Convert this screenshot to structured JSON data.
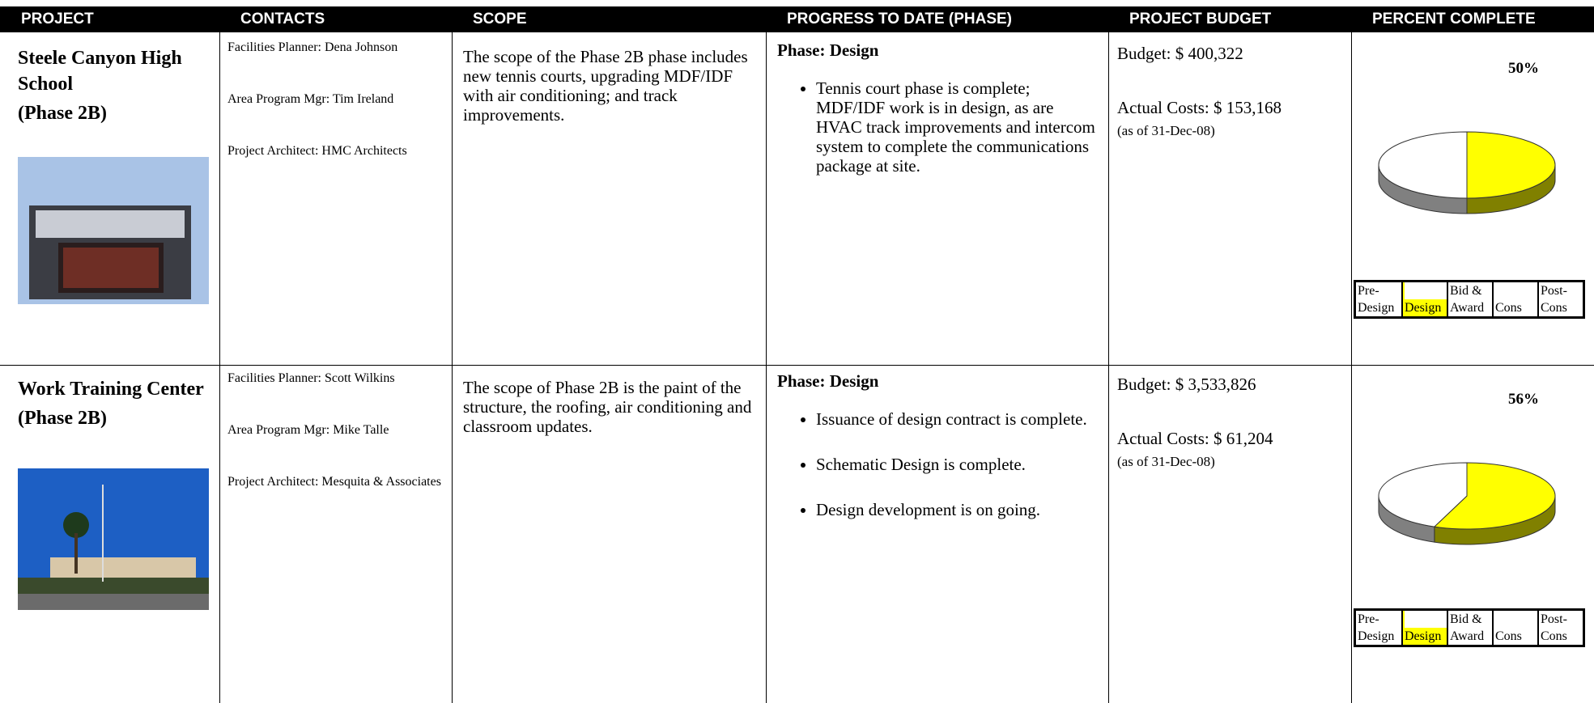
{
  "header": [
    "PROJECT",
    "CONTACTS",
    "SCOPE",
    "PROGRESS TO DATE (PHASE)",
    "PROJECT BUDGET",
    "PERCENT COMPLETE"
  ],
  "rows": [
    {
      "project": [
        "Steele Canyon High School",
        "(Phase 2B)"
      ],
      "contacts": [
        "Facilities Planner: Dena Johnson",
        "Area Program Mgr: Tim Ireland",
        "Project Architect: HMC Architects"
      ],
      "scope": "The scope of the Phase 2B phase includes new tennis courts, upgrading MDF/IDF with air conditioning; and track improvements.",
      "phase": "Phase:  Design",
      "bullets": [
        "Tennis court phase is complete; MDF/IDF work is in design, as are HVAC track improvements and intercom system to complete the communications package at site."
      ],
      "budget": "Budget:  $ 400,322",
      "actual": "Actual Costs:  $ 153,168",
      "as_of": "(as of 31-Dec-08)",
      "percent": {
        "value": 50,
        "label": "50%"
      },
      "phases": [
        {
          "lines": [
            "Pre-",
            "Design"
          ],
          "highlighted": false
        },
        {
          "lines": [
            "",
            "Design"
          ],
          "highlighted": true
        },
        {
          "lines": [
            "Bid &",
            "Award"
          ],
          "highlighted": false
        },
        {
          "lines": [
            "",
            "Cons"
          ],
          "highlighted": false
        },
        {
          "lines": [
            "Post-",
            "Cons"
          ],
          "highlighted": false
        }
      ]
    },
    {
      "project": [
        "Work Training Center",
        "(Phase 2B)"
      ],
      "contacts": [
        "Facilities Planner: Scott Wilkins",
        "Area Program Mgr: Mike Talle",
        "Project Architect: Mesquita & Associates"
      ],
      "scope": "The scope of Phase 2B is the paint of the structure, the roofing, air conditioning and classroom updates.",
      "phase": "Phase:  Design",
      "bullets": [
        "Issuance of design contract is complete.",
        "Schematic Design is complete.",
        "Design development is on going."
      ],
      "budget": "Budget:  $ 3,533,826",
      "actual": "Actual Costs:  $ 61,204",
      "as_of": "(as of 31-Dec-08)",
      "percent": {
        "value": 56,
        "label": "56%"
      },
      "phases": [
        {
          "lines": [
            "Pre-",
            "Design"
          ],
          "highlighted": false
        },
        {
          "lines": [
            "",
            "Design"
          ],
          "highlighted": true
        },
        {
          "lines": [
            "Bid &",
            "Award"
          ],
          "highlighted": false
        },
        {
          "lines": [
            "",
            "Cons"
          ],
          "highlighted": false
        },
        {
          "lines": [
            "Post-",
            "Cons"
          ],
          "highlighted": false
        }
      ]
    }
  ]
}
